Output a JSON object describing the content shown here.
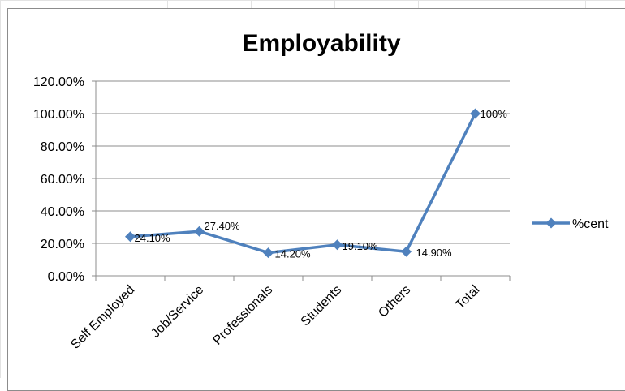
{
  "chart_data": {
    "type": "line",
    "title": "Employability",
    "categories": [
      "Self Employed",
      "Job/Service",
      "Professionals",
      "Students",
      "Others",
      "Total"
    ],
    "series": [
      {
        "name": "%cent",
        "values": [
          24.1,
          27.4,
          14.2,
          19.1,
          14.9,
          100
        ],
        "labels": [
          "24.10%",
          "27.40%",
          "14.20%",
          "19.10%",
          "14.90%",
          "100%"
        ],
        "color": "#4f81bd"
      }
    ],
    "y_ticks": [
      "0.00%",
      "20.00%",
      "40.00%",
      "60.00%",
      "80.00%",
      "100.00%",
      "120.00%"
    ],
    "ylim": [
      0,
      120
    ],
    "grid": true,
    "legend_position": "right"
  }
}
